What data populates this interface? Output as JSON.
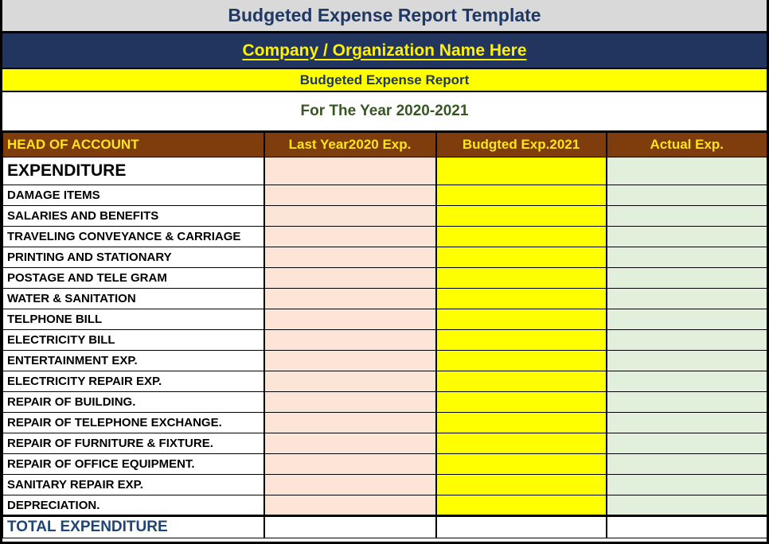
{
  "header": {
    "template_title": "Budgeted Expense Report Template",
    "company_name": "Company / Organization Name Here",
    "report_title": "Budgeted Expense Report",
    "period": "For The Year 2020-2021"
  },
  "table": {
    "columns": [
      {
        "label": "HEAD OF ACCOUNT"
      },
      {
        "label": "Last Year2020 Exp."
      },
      {
        "label": "Budgted Exp.2021"
      },
      {
        "label": "Actual Exp."
      }
    ],
    "section_header": {
      "label": "EXPENDITURE",
      "values": [
        "",
        "",
        ""
      ]
    },
    "rows": [
      {
        "label": "DAMAGE ITEMS",
        "values": [
          "",
          "",
          ""
        ]
      },
      {
        "label": "SALARIES AND BENEFITS",
        "values": [
          "",
          "",
          ""
        ]
      },
      {
        "label": "TRAVELING CONVEYANCE & CARRIAGE",
        "values": [
          "",
          "",
          ""
        ]
      },
      {
        "label": "PRINTING AND STATIONARY",
        "values": [
          "",
          "",
          ""
        ]
      },
      {
        "label": "POSTAGE AND TELE GRAM",
        "values": [
          "",
          "",
          ""
        ]
      },
      {
        "label": "WATER & SANITATION",
        "values": [
          "",
          "",
          ""
        ]
      },
      {
        "label": "TELPHONE BILL",
        "values": [
          "",
          "",
          ""
        ]
      },
      {
        "label": "ELECTRICITY BILL",
        "values": [
          "",
          "",
          ""
        ]
      },
      {
        "label": "ENTERTAINMENT EXP.",
        "values": [
          "",
          "",
          ""
        ]
      },
      {
        "label": "ELECTRICITY REPAIR EXP.",
        "values": [
          "",
          "",
          ""
        ]
      },
      {
        "label": "REPAIR OF BUILDING.",
        "values": [
          "",
          "",
          ""
        ]
      },
      {
        "label": "REPAIR OF TELEPHONE EXCHANGE.",
        "values": [
          "",
          "",
          ""
        ]
      },
      {
        "label": "REPAIR OF FURNITURE & FIXTURE.",
        "values": [
          "",
          "",
          ""
        ]
      },
      {
        "label": "REPAIR OF OFFICE EQUIPMENT.",
        "values": [
          "",
          "",
          ""
        ]
      },
      {
        "label": "SANITARY REPAIR EXP.",
        "values": [
          "",
          "",
          ""
        ]
      },
      {
        "label": "DEPRECIATION.",
        "values": [
          "",
          "",
          ""
        ]
      }
    ],
    "total_row": {
      "label": "TOTAL EXPENDITURE",
      "values": [
        "",
        "",
        ""
      ]
    }
  },
  "colors": {
    "title_bar_bg": "#d9d9d9",
    "navy_bar_bg": "#21355f",
    "yellow_bar_bg": "#ffff00",
    "header_brown_bg": "#7f3d0e",
    "header_text_yellow": "#ffe41c",
    "title_navy_text": "#1f3864",
    "period_green_text": "#375623",
    "total_blue_text": "#1f4577",
    "last_year_col_bg": "#fce4d6",
    "budgeted_col_bg": "#ffff00",
    "actual_col_bg": "#e2efda",
    "border_black": "#000000"
  }
}
